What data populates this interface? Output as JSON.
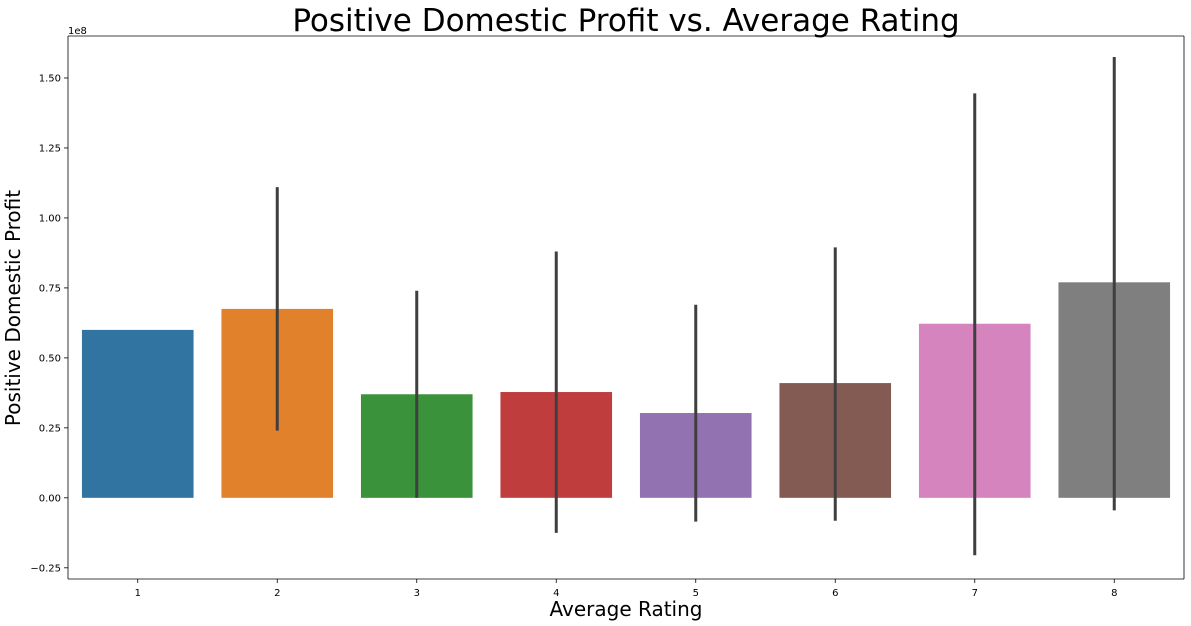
{
  "chart_data": {
    "type": "bar",
    "title": "Positive Domestic Profit vs. Average Rating",
    "xlabel": "Average Rating",
    "ylabel": "Positive Domestic Profit",
    "y_offset_label": "1e8",
    "ylim": [
      -0.29,
      1.65
    ],
    "yticks": [
      -0.25,
      0.0,
      0.25,
      0.5,
      0.75,
      1.0,
      1.25,
      1.5
    ],
    "ytick_labels": [
      "−0.25",
      "0.00",
      "0.25",
      "0.50",
      "0.75",
      "1.00",
      "1.25",
      "1.50"
    ],
    "categories": [
      "1",
      "2",
      "3",
      "4",
      "5",
      "6",
      "7",
      "8"
    ],
    "values": [
      0.6,
      0.675,
      0.37,
      0.378,
      0.303,
      0.41,
      0.622,
      0.77
    ],
    "error_low": [
      null,
      0.24,
      0.0,
      -0.125,
      -0.085,
      -0.082,
      -0.205,
      -0.045
    ],
    "error_high": [
      null,
      1.11,
      0.74,
      0.88,
      0.69,
      0.895,
      1.445,
      1.575
    ],
    "colors": [
      "#3274a1",
      "#e1812c",
      "#3a923a",
      "#c03d3e",
      "#9372b2",
      "#845b53",
      "#d684bd",
      "#7f7f7f"
    ],
    "error_color": "#3f3f3f",
    "grid": false,
    "legend": "none"
  }
}
